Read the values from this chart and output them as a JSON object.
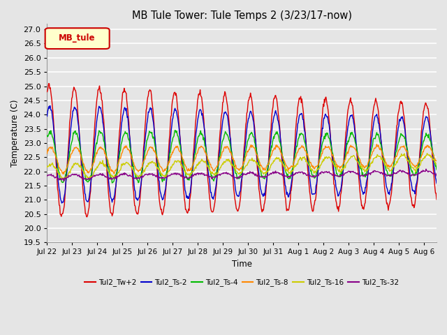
{
  "title": "MB Tule Tower: Tule Temps 2 (3/23/17-now)",
  "ylabel": "Temperature (C)",
  "xlabel": "Time",
  "ylim": [
    19.5,
    27.2
  ],
  "yticks": [
    19.5,
    20.0,
    20.5,
    21.0,
    21.5,
    22.0,
    22.5,
    23.0,
    23.5,
    24.0,
    24.5,
    25.0,
    25.5,
    26.0,
    26.5,
    27.0
  ],
  "bg_color": "#e5e5e5",
  "plot_bg_color": "#e5e5e5",
  "grid_color": "white",
  "series": [
    {
      "label": "Tul2_Tw+2",
      "color": "#dd0000"
    },
    {
      "label": "Tul2_Ts-2",
      "color": "#0000cc"
    },
    {
      "label": "Tul2_Ts-4",
      "color": "#00bb00"
    },
    {
      "label": "Tul2_Ts-8",
      "color": "#ff8800"
    },
    {
      "label": "Tul2_Ts-16",
      "color": "#cccc00"
    },
    {
      "label": "Tul2_Ts-32",
      "color": "#880088"
    }
  ],
  "legend_label": "MB_tule",
  "legend_label_color": "#cc0000",
  "legend_box_color": "#ffffcc",
  "x_tick_labels": [
    "Jul 22",
    "Jul 23",
    "Jul 24",
    "Jul 25",
    "Jul 26",
    "Jul 27",
    "Jul 28",
    "Jul 29",
    "Jul 30",
    "Jul 31",
    "Aug 1",
    "Aug 2",
    "Aug 3",
    "Aug 4",
    "Aug 5",
    "Aug 6"
  ]
}
